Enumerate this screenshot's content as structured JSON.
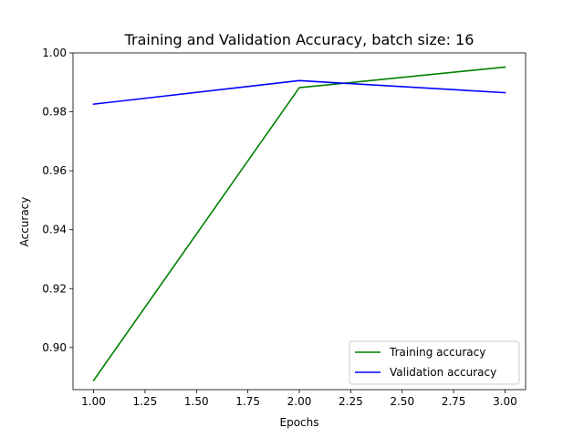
{
  "chart_data": {
    "type": "line",
    "title": "Training and Validation Accuracy, batch size: 16",
    "xlabel": "Epochs",
    "ylabel": "Accuracy",
    "xlim": [
      0.9,
      3.1
    ],
    "ylim": [
      0.8857,
      1.0
    ],
    "x_ticks": [
      1.0,
      1.25,
      1.5,
      1.75,
      2.0,
      2.25,
      2.5,
      2.75,
      3.0
    ],
    "x_tick_labels": [
      "1.00",
      "1.25",
      "1.50",
      "1.75",
      "2.00",
      "2.25",
      "2.50",
      "2.75",
      "3.00"
    ],
    "y_ticks": [
      0.9,
      0.92,
      0.94,
      0.96,
      0.98,
      1.0
    ],
    "y_tick_labels": [
      "0.90",
      "0.92",
      "0.94",
      "0.96",
      "0.98",
      "1.00"
    ],
    "x": [
      1,
      2,
      3
    ],
    "series": [
      {
        "name": "Training accuracy",
        "color": "#008000",
        "values": [
          0.8888,
          0.9882,
          0.9952
        ]
      },
      {
        "name": "Validation accuracy",
        "color": "#0000ff",
        "values": [
          0.9826,
          0.9906,
          0.9865
        ]
      }
    ],
    "grid": false,
    "legend_position": "lower-right"
  }
}
